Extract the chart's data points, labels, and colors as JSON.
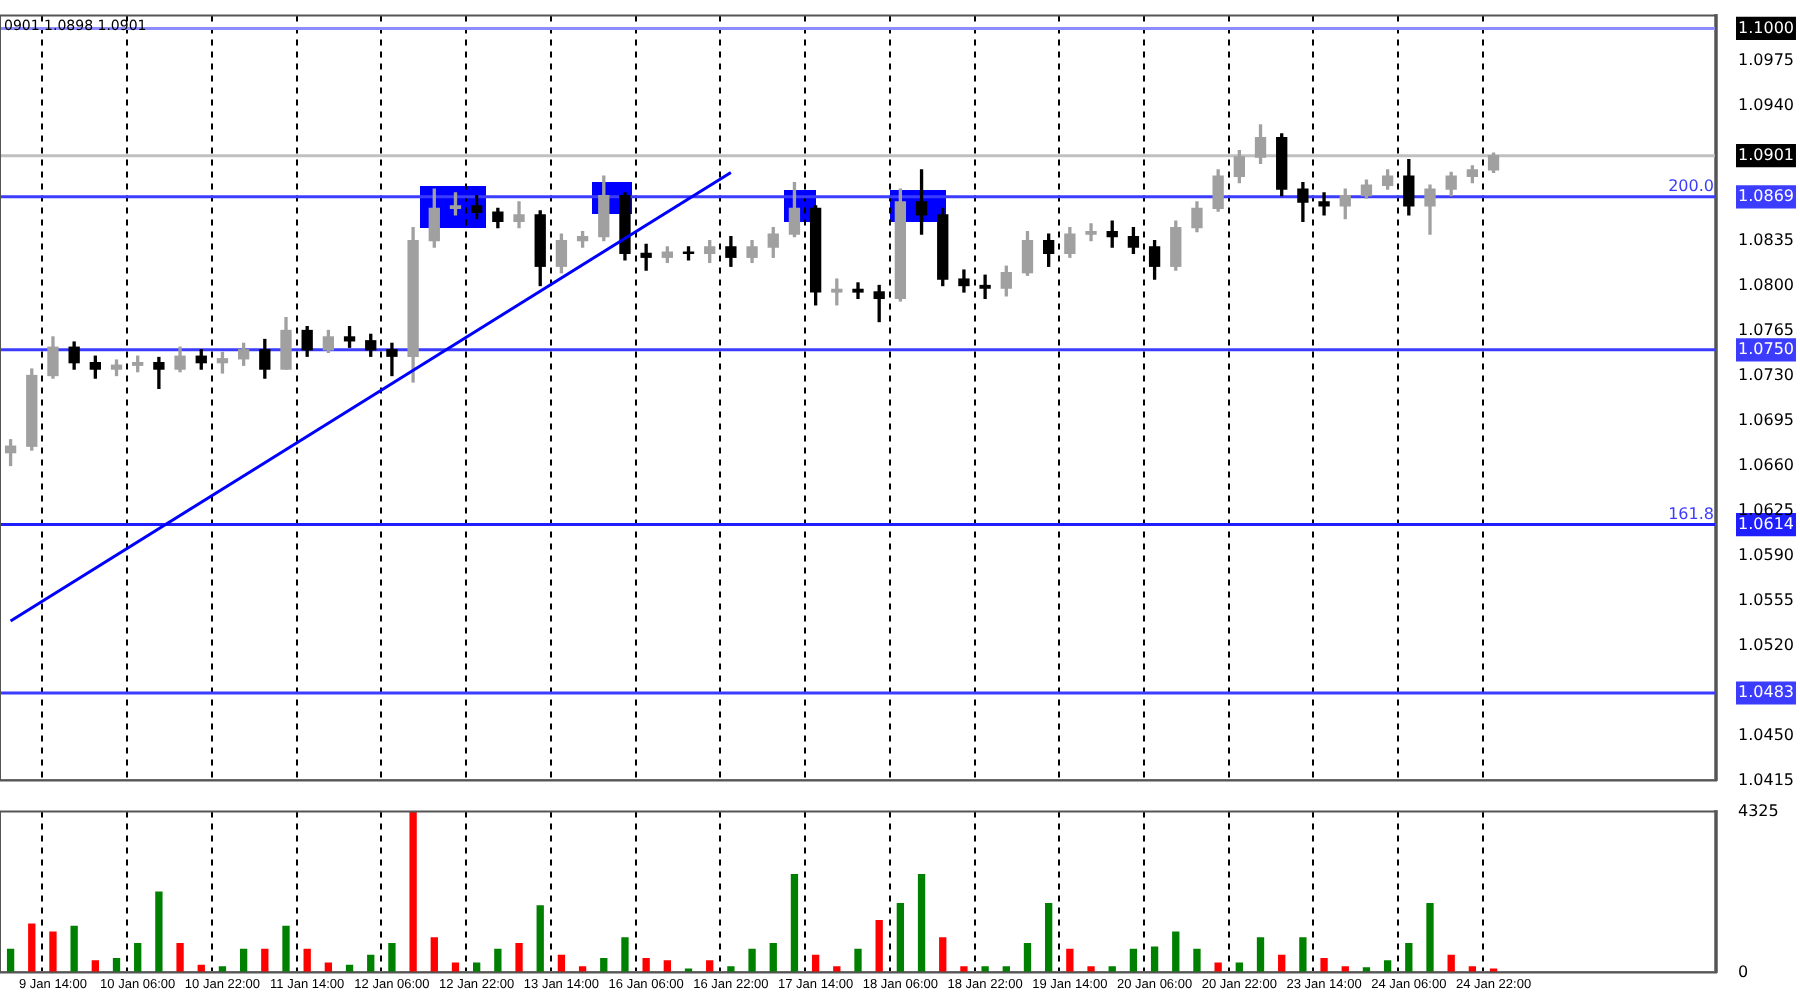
{
  "chart_data": [
    {
      "type": "candlestick",
      "tick_labels": "y",
      "colors": [
        "#a0a0a0",
        "#a0a0a0",
        "#a0a0a0",
        "#000000",
        "#000000",
        "#a0a0a0",
        "#a0a0a0",
        "#000000",
        "#a0a0a0",
        "#000000",
        "#a0a0a0",
        "#a0a0a0",
        "#000000",
        "#a0a0a0",
        "#000000",
        "#a0a0a0",
        "#000000",
        "#000000",
        "#000000",
        "#a0a0a0",
        "#a0a0a0",
        "#a0a0a0",
        "#000000",
        "#000000",
        "#a0a0a0",
        "#000000",
        "#a0a0a0",
        "#a0a0a0",
        "#a0a0a0",
        "#000000",
        "#000000",
        "#a0a0a0",
        "#000000",
        "#a0a0a0",
        "#000000",
        "#a0a0a0",
        "#a0a0a0",
        "#a0a0a0",
        "#000000",
        "#a0a0a0",
        "#000000",
        "#000000",
        "#a0a0a0",
        "#000000",
        "#000000",
        "#000000",
        "#000000",
        "#a0a0a0",
        "#a0a0a0",
        "#000000",
        "#a0a0a0",
        "#a0a0a0",
        "#000000",
        "#000000",
        "#000000",
        "#a0a0a0",
        "#a0a0a0",
        "#a0a0a0",
        "#a0a0a0",
        "#a0a0a0",
        "#000000",
        "#000000",
        "#000000",
        "#a0a0a0",
        "#a0a0a0",
        "#a0a0a0",
        "#000000",
        "#a0a0a0",
        "#a0a0a0",
        "#a0a0a0",
        "#a0a0a0",
        "#000000",
        "#000000",
        "#000000",
        "#000000",
        "#000000",
        "#000000",
        "#000000",
        "#000000",
        "#000000",
        "#000000"
      ],
      "grid": "x",
      "annotations": [
        "0901 1.0898 1.0901",
        {
          "text": "200.0",
          "y": 1.0869
        },
        {
          "text": "161.8",
          "y": 1.0614
        }
      ],
      "ohlc": [
        [
          1.067,
          1.068,
          1.066,
          1.0675
        ],
        [
          1.0675,
          1.0735,
          1.0672,
          1.073
        ],
        [
          1.073,
          1.076,
          1.0728,
          1.0752
        ],
        [
          1.0752,
          1.0756,
          1.0735,
          1.074
        ],
        [
          1.074,
          1.0745,
          1.0728,
          1.0735
        ],
        [
          1.0735,
          1.0742,
          1.073,
          1.0738
        ],
        [
          1.0738,
          1.0745,
          1.0733,
          1.074
        ],
        [
          1.074,
          1.0744,
          1.072,
          1.0735
        ],
        [
          1.0735,
          1.0752,
          1.0733,
          1.0745
        ],
        [
          1.0745,
          1.075,
          1.0735,
          1.074
        ],
        [
          1.074,
          1.0748,
          1.0732,
          1.0743
        ],
        [
          1.0743,
          1.0755,
          1.0738,
          1.075
        ],
        [
          1.075,
          1.0758,
          1.0728,
          1.0735
        ],
        [
          1.0735,
          1.0775,
          1.0735,
          1.0765
        ],
        [
          1.0765,
          1.0768,
          1.0745,
          1.075
        ],
        [
          1.075,
          1.0765,
          1.0748,
          1.076
        ],
        [
          1.076,
          1.0768,
          1.0752,
          1.0757
        ],
        [
          1.0757,
          1.0762,
          1.0745,
          1.075
        ],
        [
          1.075,
          1.0755,
          1.073,
          1.0745
        ],
        [
          1.0745,
          1.0845,
          1.0725,
          1.0835
        ],
        [
          1.0835,
          1.0875,
          1.083,
          1.086
        ],
        [
          1.086,
          1.0872,
          1.0855,
          1.0862
        ],
        [
          1.0862,
          1.087,
          1.0852,
          1.0857
        ],
        [
          1.0857,
          1.086,
          1.0845,
          1.085
        ],
        [
          1.085,
          1.0865,
          1.0845,
          1.0855
        ],
        [
          1.0855,
          1.0858,
          1.08,
          1.0815
        ],
        [
          1.0815,
          1.084,
          1.081,
          1.0835
        ],
        [
          1.0835,
          1.0842,
          1.083,
          1.0838
        ],
        [
          1.0838,
          1.0885,
          1.0835,
          1.087
        ],
        [
          1.087,
          1.0872,
          1.082,
          1.0825
        ],
        [
          1.0825,
          1.0832,
          1.0812,
          1.0822
        ],
        [
          1.0822,
          1.083,
          1.0818,
          1.0826
        ],
        [
          1.0826,
          1.083,
          1.082,
          1.0825
        ],
        [
          1.0825,
          1.0835,
          1.0818,
          1.083
        ],
        [
          1.083,
          1.0838,
          1.0815,
          1.0822
        ],
        [
          1.0822,
          1.0835,
          1.0818,
          1.083
        ],
        [
          1.083,
          1.0845,
          1.0822,
          1.084
        ],
        [
          1.084,
          1.088,
          1.0838,
          1.086
        ],
        [
          1.086,
          1.0862,
          1.0785,
          1.0795
        ],
        [
          1.0795,
          1.0805,
          1.0785,
          1.0797
        ],
        [
          1.0797,
          1.0802,
          1.079,
          1.0795
        ],
        [
          1.0795,
          1.08,
          1.0772,
          1.079
        ],
        [
          1.079,
          1.0875,
          1.0788,
          1.0865
        ],
        [
          1.0865,
          1.089,
          1.084,
          1.0855
        ],
        [
          1.0855,
          1.086,
          1.08,
          1.0805
        ],
        [
          1.0805,
          1.0812,
          1.0795,
          1.08
        ],
        [
          1.08,
          1.0808,
          1.079,
          1.0798
        ],
        [
          1.0798,
          1.0815,
          1.0792,
          1.081
        ],
        [
          1.081,
          1.0842,
          1.0808,
          1.0835
        ],
        [
          1.0835,
          1.084,
          1.0815,
          1.0825
        ],
        [
          1.0825,
          1.0845,
          1.0822,
          1.084
        ],
        [
          1.084,
          1.0848,
          1.0835,
          1.0842
        ],
        [
          1.0842,
          1.085,
          1.083,
          1.0838
        ],
        [
          1.0838,
          1.0845,
          1.0825,
          1.083
        ],
        [
          1.083,
          1.0835,
          1.0805,
          1.0815
        ],
        [
          1.0815,
          1.085,
          1.0812,
          1.0845
        ],
        [
          1.0845,
          1.0865,
          1.0842,
          1.086
        ],
        [
          1.086,
          1.089,
          1.0858,
          1.0885
        ],
        [
          1.0885,
          1.0905,
          1.088,
          1.09
        ],
        [
          1.09,
          1.0925,
          1.0895,
          1.0915
        ],
        [
          1.0915,
          1.0918,
          1.087,
          1.0875
        ],
        [
          1.0875,
          1.088,
          1.085,
          1.0865
        ],
        [
          1.0865,
          1.0872,
          1.0855,
          1.0862
        ],
        [
          1.0862,
          1.0875,
          1.0852,
          1.087
        ],
        [
          1.087,
          1.0882,
          1.0868,
          1.0878
        ],
        [
          1.0878,
          1.089,
          1.0875,
          1.0885
        ],
        [
          1.0885,
          1.0898,
          1.0855,
          1.0862
        ],
        [
          1.0862,
          1.0878,
          1.084,
          1.0875
        ],
        [
          1.0875,
          1.0888,
          1.087,
          1.0885
        ],
        [
          1.0885,
          1.0893,
          1.088,
          1.089
        ],
        [
          1.089,
          1.0903,
          1.0888,
          1.0901
        ],
        null,
        null,
        null,
        null,
        null,
        null,
        null,
        null,
        null,
        null
      ],
      "series": [
        {
          "type": "line",
          "color": "#0000ff",
          "values": [
            1.0539,
            null,
            null,
            null,
            null,
            null,
            null,
            null,
            null,
            null,
            null,
            null,
            null,
            null,
            null,
            null,
            null,
            null,
            null,
            null,
            null,
            null,
            null,
            null,
            null,
            null,
            null,
            null,
            null,
            null,
            null,
            null,
            null,
            null,
            1.0888,
            null,
            null,
            null,
            null,
            null,
            null,
            null,
            null,
            null,
            null,
            null,
            null,
            null,
            null,
            null,
            null,
            null,
            null,
            null,
            null,
            null,
            null,
            null,
            null,
            null,
            null,
            null,
            null,
            null,
            null,
            null,
            null,
            null,
            null,
            null,
            null,
            null,
            null,
            null,
            null,
            null,
            null,
            null,
            null,
            null,
            null
          ]
        }
      ],
      "ylim": [
        1.0415,
        1.101
      ],
      "yticks": [
        1.0415,
        {
          "value": 1.045,
          "label": "1.0450"
        },
        {
          "value": 1.0483,
          "label": "1.0483"
        },
        {
          "value": 1.052,
          "label": "1.0520"
        },
        1.0555,
        {
          "value": 1.059,
          "label": "1.0590"
        },
        {
          "value": 1.0614,
          "label": "1.0614"
        },
        1.0625,
        {
          "value": 1.066,
          "label": "1.0660"
        },
        1.0695,
        {
          "value": 1.073,
          "label": "1.0730"
        },
        {
          "value": 1.075,
          "label": "1.0750"
        },
        1.0765,
        {
          "value": 1.08,
          "label": "1.0800"
        },
        1.0835,
        1.0869,
        1.0901,
        {
          "value": 1.094,
          "label": "1.0940"
        },
        1.0975,
        {
          "value": 1.1,
          "label": "1.1000"
        }
      ],
      "ref_lines": [
        {
          "axis": "y",
          "value": 1.1,
          "color": "#8c8cff"
        },
        {
          "axis": "y",
          "value": 1.0901,
          "color": "#c0c0c0"
        },
        {
          "axis": "y",
          "value": 1.0869,
          "color": "#3c3cff"
        },
        {
          "axis": "y",
          "value": 1.075,
          "color": "#3c3cff"
        },
        {
          "axis": "y",
          "value": 1.0614,
          "color": "#1e1eff"
        },
        {
          "axis": "y",
          "value": 1.0483,
          "color": "#3c3cff"
        }
      ]
    },
    {
      "type": "bar",
      "grid": "x",
      "categories": [
        null,
        null,
        "9 Jan 14:00",
        null,
        null,
        null,
        "10 Jan 06:00",
        null,
        null,
        null,
        "10 Jan 22:00",
        null,
        null,
        null,
        "11 Jan 14:00",
        null,
        null,
        null,
        "12 Jan 06:00",
        null,
        null,
        null,
        "12 Jan 22:00",
        null,
        null,
        null,
        "13 Jan 14:00",
        null,
        null,
        null,
        "16 Jan 06:00",
        null,
        null,
        null,
        "16 Jan 22:00",
        null,
        null,
        null,
        "17 Jan 14:00",
        null,
        null,
        null,
        "18 Jan 06:00",
        null,
        null,
        null,
        "18 Jan 22:00",
        null,
        null,
        null,
        "19 Jan 14:00",
        null,
        null,
        null,
        "20 Jan 06:00",
        null,
        null,
        null,
        "20 Jan 22:00",
        null,
        null,
        null,
        "23 Jan 14:00",
        null,
        null,
        null,
        "24 Jan 06:00",
        null,
        null,
        null,
        "24 Jan 22:00",
        null,
        null,
        null,
        null,
        null,
        null,
        null,
        null,
        null,
        null
      ],
      "values": [
        620,
        1300,
        1080,
        1240,
        310,
        370,
        770,
        2160,
        770,
        190,
        150,
        620,
        620,
        1240,
        620,
        250,
        190,
        460,
        770,
        4325,
        930,
        250,
        250,
        620,
        770,
        1790,
        460,
        150,
        370,
        930,
        370,
        310,
        90,
        310,
        150,
        620,
        770,
        2630,
        460,
        150,
        620,
        1390,
        1850,
        2630,
        930,
        150,
        150,
        150,
        770,
        1850,
        620,
        150,
        150,
        620,
        680,
        1080,
        620,
        250,
        250,
        930,
        460,
        930,
        370,
        150,
        120,
        310,
        770,
        1850,
        460,
        150,
        90,
        null,
        null,
        null,
        null,
        null,
        null,
        null,
        null,
        null,
        null
      ],
      "colors": [
        "#008000",
        "#ff0000",
        "#ff0000",
        "#008000",
        "#ff0000",
        "#008000",
        "#008000",
        "#008000",
        "#ff0000",
        "#ff0000",
        "#008000",
        "#008000",
        "#ff0000",
        "#008000",
        "#ff0000",
        "#ff0000",
        "#008000",
        "#008000",
        "#008000",
        "#ff0000",
        "#ff0000",
        "#ff0000",
        "#008000",
        "#008000",
        "#ff0000",
        "#008000",
        "#ff0000",
        "#ff0000",
        "#008000",
        "#008000",
        "#ff0000",
        "#ff0000",
        "#008000",
        "#ff0000",
        "#008000",
        "#008000",
        "#008000",
        "#008000",
        "#ff0000",
        "#ff0000",
        "#008000",
        "#ff0000",
        "#008000",
        "#008000",
        "#ff0000",
        "#ff0000",
        "#008000",
        "#008000",
        "#008000",
        "#008000",
        "#ff0000",
        "#ff0000",
        "#008000",
        "#008000",
        "#008000",
        "#008000",
        "#008000",
        "#ff0000",
        "#008000",
        "#008000",
        "#ff0000",
        "#008000",
        "#ff0000",
        "#ff0000",
        "#008000",
        "#008000",
        "#008000",
        "#008000",
        "#ff0000",
        "#ff0000",
        "#ff0000",
        "#008000",
        "#008000",
        "#008000",
        "#008000",
        "#008000",
        "#008000",
        "#008000",
        "#008000",
        "#008000",
        "#008000"
      ],
      "ylim": [
        0,
        4325
      ],
      "yticks": [
        0,
        4325
      ]
    }
  ]
}
